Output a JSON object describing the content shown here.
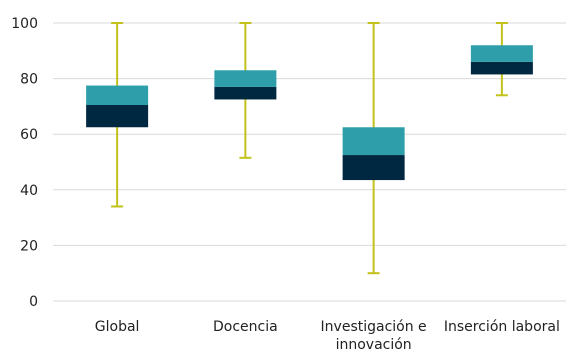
{
  "chart_data": {
    "type": "box",
    "title": "",
    "xlabel": "",
    "ylabel": "",
    "ylim": [
      0,
      100
    ],
    "yticks": [
      0,
      20,
      40,
      60,
      80,
      100
    ],
    "grid": true,
    "legend": "none",
    "categories": [
      {
        "label_lines": [
          "Global"
        ],
        "min": 34,
        "q1": 62.5,
        "median": 70.5,
        "q3": 77.5,
        "max": 100
      },
      {
        "label_lines": [
          "Docencia"
        ],
        "min": 51.5,
        "q1": 72.5,
        "median": 77,
        "q3": 83,
        "max": 100
      },
      {
        "label_lines": [
          "Investigación e",
          "innovación"
        ],
        "min": 10,
        "q1": 43.5,
        "median": 52.5,
        "q3": 62.5,
        "max": 100
      },
      {
        "label_lines": [
          "Inserción laboral"
        ],
        "min": 74,
        "q1": 81.5,
        "median": 86,
        "q3": 92,
        "max": 100
      }
    ],
    "colors": {
      "lower_box": "#002840",
      "upper_box": "#2e9faa",
      "whisker": "#c2c21a",
      "grid": "#d9d9d9"
    }
  }
}
